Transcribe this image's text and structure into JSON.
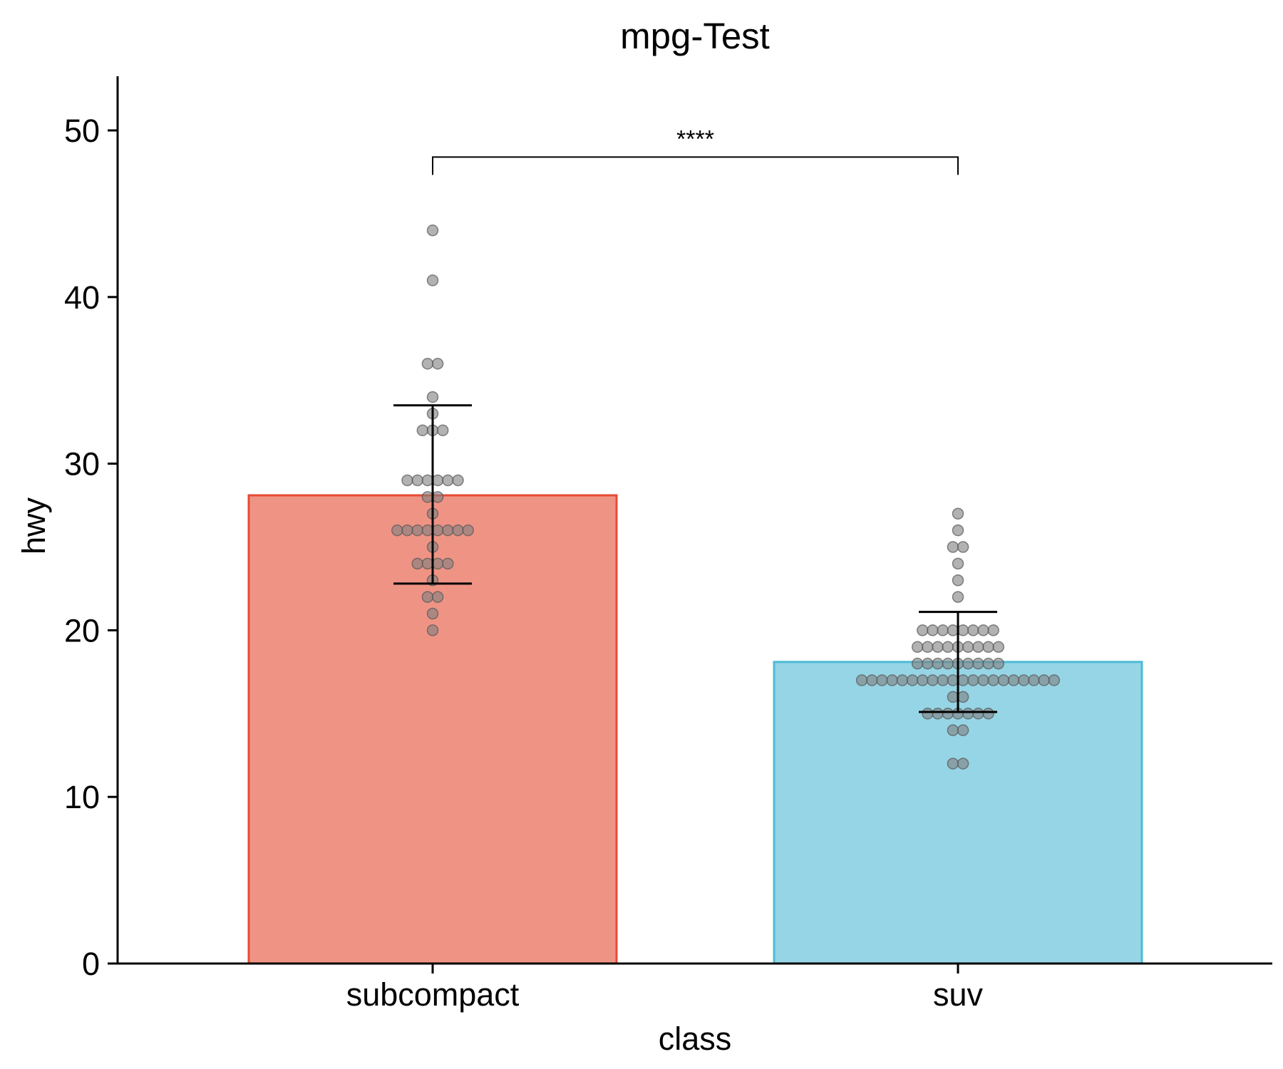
{
  "chart_data": {
    "type": "bar",
    "title": "mpg-Test",
    "xlabel": "class",
    "ylabel": "hwy",
    "categories": [
      "subcompact",
      "suv"
    ],
    "values": [
      28.1,
      18.1
    ],
    "error_bars": [
      {
        "low": 22.8,
        "high": 33.5
      },
      {
        "low": 15.1,
        "high": 21.1
      }
    ],
    "ylim": [
      0,
      53
    ],
    "yticks": [
      0,
      10,
      20,
      30,
      40,
      50
    ],
    "colors": {
      "fills": [
        "#ef9485",
        "#96d5e5"
      ],
      "strokes": [
        "#e64b35",
        "#4dbbd5"
      ],
      "points": "#7f7f7f"
    },
    "points": [
      {
        "value": 44,
        "count": 1
      },
      {
        "value": 41,
        "count": 1
      },
      {
        "value": 36,
        "count": 2
      },
      {
        "value": 34,
        "count": 1
      },
      {
        "value": 33,
        "count": 1
      },
      {
        "value": 32,
        "count": 3
      },
      {
        "value": 29,
        "count": 6
      },
      {
        "value": 28,
        "count": 2
      },
      {
        "value": 27,
        "count": 1
      },
      {
        "value": 26,
        "count": 8
      },
      {
        "value": 25,
        "count": 1
      },
      {
        "value": 24,
        "count": 4
      },
      {
        "value": 23,
        "count": 1
      },
      {
        "value": 22,
        "count": 2
      },
      {
        "value": 21,
        "count": 1
      },
      {
        "value": 20,
        "count": 1
      }
    ],
    "points_suv": [
      {
        "value": 27,
        "count": 1
      },
      {
        "value": 26,
        "count": 1
      },
      {
        "value": 25,
        "count": 2
      },
      {
        "value": 24,
        "count": 1
      },
      {
        "value": 23,
        "count": 1
      },
      {
        "value": 22,
        "count": 1
      },
      {
        "value": 20,
        "count": 8
      },
      {
        "value": 19,
        "count": 9
      },
      {
        "value": 18,
        "count": 9
      },
      {
        "value": 17,
        "count": 20
      },
      {
        "value": 16,
        "count": 2
      },
      {
        "value": 15,
        "count": 7
      },
      {
        "value": 14,
        "count": 2
      },
      {
        "value": 12,
        "count": 2
      }
    ],
    "significance": {
      "label": "****",
      "from": "subcompact",
      "to": "suv",
      "y": 48.4
    }
  }
}
